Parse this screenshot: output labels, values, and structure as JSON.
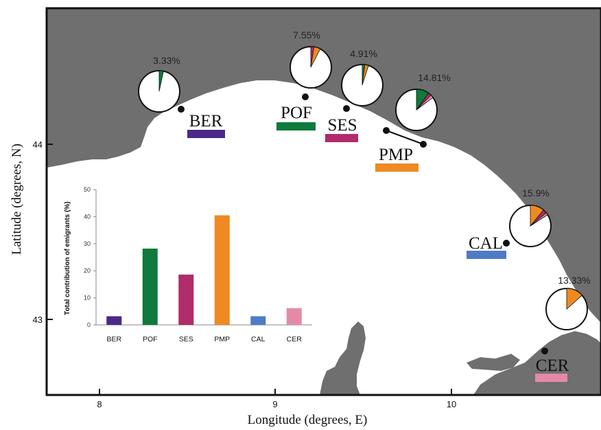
{
  "map": {
    "x_label": "Longitude (degrees, E)",
    "y_label": "Latitude (degrees, N)",
    "x_ticks": [
      "8",
      "9",
      "10"
    ],
    "y_ticks": [
      "44",
      "43"
    ],
    "colors": {
      "land": "#6f6f6f",
      "sea": "#ffffff",
      "frame": "#111111"
    }
  },
  "sites": [
    {
      "code": "BER",
      "color": "#4a2a86",
      "percent_label": "3.33%",
      "pie": [
        {
          "color": "#0f7a3c",
          "value": 3.33
        }
      ]
    },
    {
      "code": "POF",
      "color": "#0f7a3c",
      "percent_label": "7.55%",
      "pie": [
        {
          "color": "#b02c6a",
          "value": 2.5
        },
        {
          "color": "#ee8a22",
          "value": 5.05
        }
      ]
    },
    {
      "code": "SES",
      "color": "#b02c6a",
      "percent_label": "4.91%",
      "pie": [
        {
          "color": "#0f7a3c",
          "value": 2.0
        },
        {
          "color": "#ee8a22",
          "value": 2.91
        }
      ]
    },
    {
      "code": "PMP",
      "color": "#ee8a22",
      "percent_label": "14.81%",
      "pie": [
        {
          "color": "#0f7a3c",
          "value": 10.0
        },
        {
          "color": "#b02c6a",
          "value": 2.4
        },
        {
          "color": "#e48aa7",
          "value": 2.41
        }
      ]
    },
    {
      "code": "CAL",
      "color": "#4e7bc6",
      "percent_label": "15.9%",
      "pie": [
        {
          "color": "#ee8a22",
          "value": 11.0
        },
        {
          "color": "#b02c6a",
          "value": 3.0
        },
        {
          "color": "#e48aa7",
          "value": 1.9
        }
      ]
    },
    {
      "code": "CER",
      "color": "#e48aa7",
      "percent_label": "13.33%",
      "pie": [
        {
          "color": "#ee8a22",
          "value": 13.33
        }
      ]
    }
  ],
  "chart_data": {
    "type": "bar",
    "title": "",
    "xlabel": "",
    "ylabel": "Total contribution of emigrants (%)",
    "categories": [
      "BER",
      "POF",
      "SES",
      "PMP",
      "CAL",
      "CER"
    ],
    "values": [
      3.2,
      28.2,
      18.6,
      40.5,
      3.2,
      6.2
    ],
    "colors": [
      "#4a2a86",
      "#0f7a3c",
      "#b02c6a",
      "#ee8a22",
      "#4e7bc6",
      "#e48aa7"
    ],
    "ylim": [
      0,
      50
    ],
    "yticks": [
      "0",
      "10",
      "20",
      "30",
      "40",
      "50"
    ],
    "grid": false
  }
}
